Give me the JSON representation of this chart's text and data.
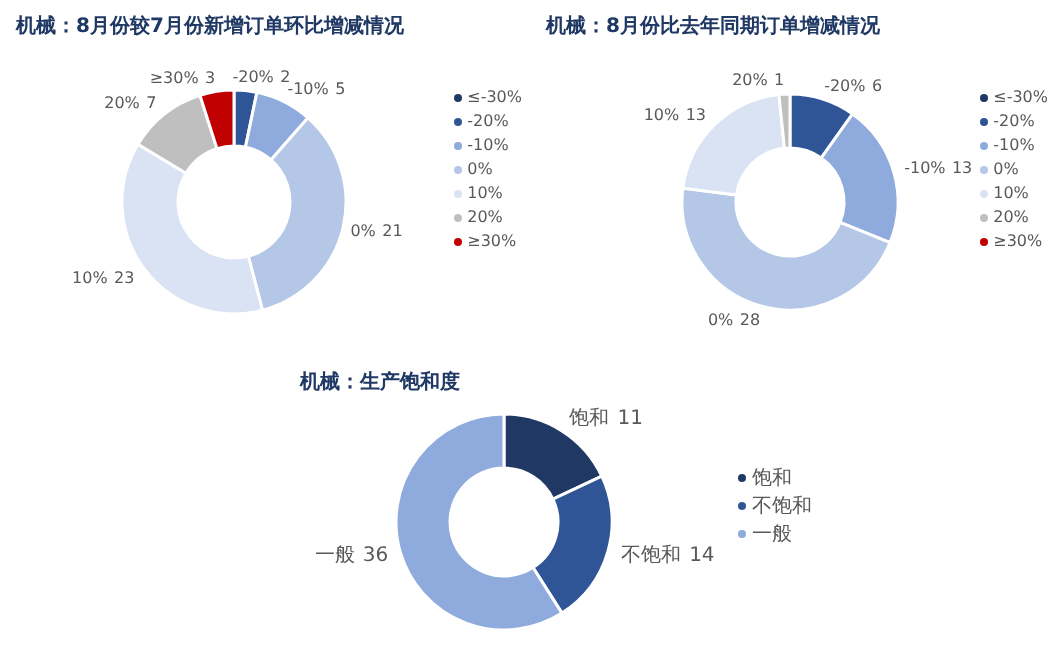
{
  "chart_data": [
    {
      "type": "donut",
      "title": "机械：8月份较7月份新增订单环比增减情况",
      "categories": [
        "≤-30%",
        "-20%",
        "-10%",
        "0%",
        "10%",
        "20%",
        "≥30%"
      ],
      "values": [
        0,
        2,
        5,
        21,
        23,
        7,
        3
      ],
      "colors": [
        "#1f3864",
        "#2f5597",
        "#8faadc",
        "#b4c7e7",
        "#dae3f3",
        "#bfbfbf",
        "#c00000"
      ],
      "legend": "right",
      "data_labels": true
    },
    {
      "type": "donut",
      "title": "机械：8月份比去年同期订单增减情况",
      "categories": [
        "≤-30%",
        "-20%",
        "-10%",
        "0%",
        "10%",
        "20%",
        "≥30%"
      ],
      "values": [
        0,
        6,
        13,
        28,
        13,
        1,
        0
      ],
      "colors": [
        "#1f3864",
        "#2f5597",
        "#8faadc",
        "#b4c7e7",
        "#dae3f3",
        "#bfbfbf",
        "#c00000"
      ],
      "legend": "right",
      "data_labels": true
    },
    {
      "type": "donut",
      "title": "机械：生产饱和度",
      "categories": [
        "饱和",
        "不饱和",
        "一般"
      ],
      "values": [
        11,
        14,
        36
      ],
      "colors": [
        "#203864",
        "#2f5597",
        "#8faadc"
      ],
      "legend": "right",
      "data_labels": true
    }
  ]
}
